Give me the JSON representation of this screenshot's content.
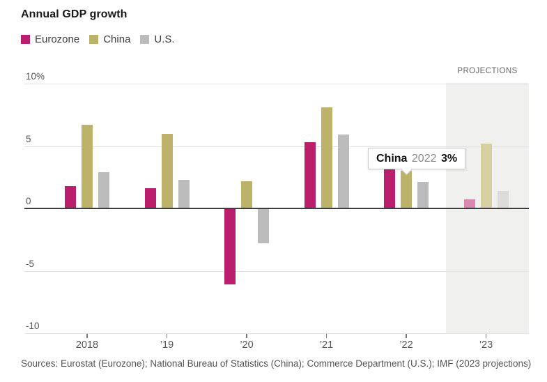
{
  "title": "Annual GDP growth",
  "legend": {
    "items": [
      {
        "label": "Eurozone",
        "color": "#bb1e6d"
      },
      {
        "label": "China",
        "color": "#bdb26a"
      },
      {
        "label": "U.S.",
        "color": "#bcbcbc"
      }
    ]
  },
  "projections_label": "PROJECTIONS",
  "tooltip": {
    "series": "China",
    "year": "2022",
    "value": "3%"
  },
  "sources": "Sources: Eurostat (Eurozone); National Bureau of Statistics (China); Commerce Department (U.S.); IMF (2023 projections)",
  "colors": {
    "grid": "#e3e3e3",
    "zero_line": "#3d3d3d",
    "projection_background": "#f0f0ee",
    "axis_text": "#555555"
  },
  "chart_data": {
    "type": "bar",
    "categories": [
      "2018",
      "’19",
      "’20",
      "’21",
      "’22",
      "’23"
    ],
    "series": [
      {
        "name": "Eurozone",
        "color": "#bb1e6d",
        "projection_color": "#db87af",
        "values": [
          1.8,
          1.6,
          -6.1,
          5.3,
          3.5,
          0.7
        ]
      },
      {
        "name": "China",
        "color": "#bdb26a",
        "projection_color": "#d5cfa2",
        "values": [
          6.7,
          6.0,
          2.2,
          8.1,
          3.0,
          5.2
        ]
      },
      {
        "name": "U.S.",
        "color": "#bcbcbc",
        "projection_color": "#dcdcdb",
        "values": [
          2.9,
          2.3,
          -2.8,
          5.9,
          2.1,
          1.4
        ]
      }
    ],
    "y_ticks": [
      {
        "value": 10,
        "label": "10%"
      },
      {
        "value": 5,
        "label": "5"
      },
      {
        "value": 0,
        "label": "0"
      },
      {
        "value": -5,
        "label": "-5"
      },
      {
        "value": -10,
        "label": "-10"
      }
    ],
    "ylim": [
      -10,
      10
    ],
    "grid": true,
    "legend_position": "top-left",
    "projection_category_index": 5,
    "annotation": "China 2022 3%"
  }
}
